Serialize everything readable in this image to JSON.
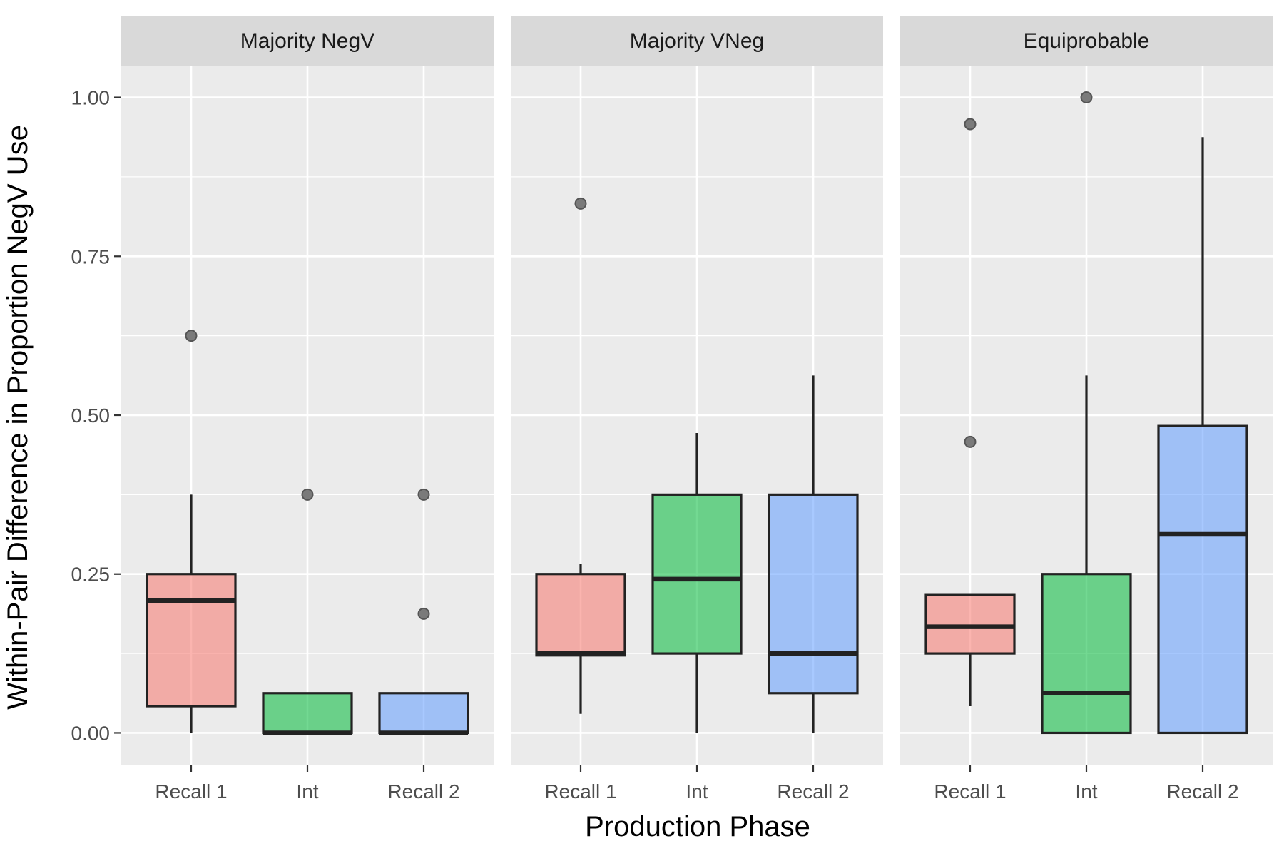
{
  "chart_data": {
    "type": "boxplot",
    "xlabel": "Production Phase",
    "ylabel": "Within-Pair Difference in Proportion NegV Use",
    "ylim": [
      -0.05,
      1.05
    ],
    "yticks": [
      0.0,
      0.25,
      0.5,
      0.75,
      1.0
    ],
    "ytick_labels": [
      "0.00",
      "0.25",
      "0.50",
      "0.75",
      "1.00"
    ],
    "categories": [
      "Recall 1",
      "Int",
      "Recall 2"
    ],
    "colors": {
      "Recall 1": "#F8766D",
      "Int": "#00BA38",
      "Recall 2": "#619CFF"
    },
    "grid": true,
    "panels": [
      {
        "title": "Majority NegV",
        "boxes": [
          {
            "phase": "Recall 1",
            "lower_whisker": 0.0,
            "q1": 0.042,
            "median": 0.208,
            "q3": 0.25,
            "upper_whisker": 0.375,
            "outliers": [
              0.625
            ]
          },
          {
            "phase": "Int",
            "lower_whisker": 0.0,
            "q1": 0.0,
            "median": 0.0,
            "q3": 0.0625,
            "upper_whisker": 0.0625,
            "outliers": [
              0.375
            ]
          },
          {
            "phase": "Recall 2",
            "lower_whisker": 0.0,
            "q1": 0.0,
            "median": 0.0,
            "q3": 0.0625,
            "upper_whisker": 0.0625,
            "outliers": [
              0.375,
              0.1875
            ]
          }
        ]
      },
      {
        "title": "Majority VNeg",
        "boxes": [
          {
            "phase": "Recall 1",
            "lower_whisker": 0.03,
            "q1": 0.122,
            "median": 0.125,
            "q3": 0.25,
            "upper_whisker": 0.266,
            "outliers": [
              0.833
            ]
          },
          {
            "phase": "Int",
            "lower_whisker": 0.0,
            "q1": 0.125,
            "median": 0.242,
            "q3": 0.375,
            "upper_whisker": 0.472,
            "outliers": []
          },
          {
            "phase": "Recall 2",
            "lower_whisker": 0.0,
            "q1": 0.0625,
            "median": 0.125,
            "q3": 0.375,
            "upper_whisker": 0.5625,
            "outliers": []
          }
        ]
      },
      {
        "title": "Equiprobable",
        "boxes": [
          {
            "phase": "Recall 1",
            "lower_whisker": 0.042,
            "q1": 0.125,
            "median": 0.167,
            "q3": 0.217,
            "upper_whisker": 0.217,
            "outliers": [
              0.958,
              0.458
            ]
          },
          {
            "phase": "Int",
            "lower_whisker": 0.0,
            "q1": 0.0,
            "median": 0.0625,
            "q3": 0.25,
            "upper_whisker": 0.5625,
            "outliers": [
              1.0
            ]
          },
          {
            "phase": "Recall 2",
            "lower_whisker": 0.0,
            "q1": 0.0,
            "median": 0.3125,
            "q3": 0.483,
            "upper_whisker": 0.9375,
            "outliers": []
          }
        ]
      }
    ]
  }
}
